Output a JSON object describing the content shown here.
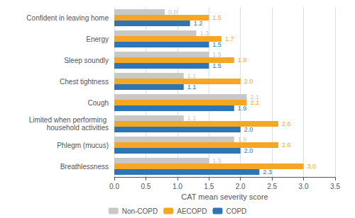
{
  "chart_data": {
    "type": "bar",
    "orientation": "horizontal",
    "categories": [
      "Breathlessness",
      "Phlegm (mucus)",
      "Limited when performing household activities",
      "Cough",
      "Chest tightness",
      "Sleep soundly",
      "Energy",
      "Confident in leaving home"
    ],
    "series": [
      {
        "name": "Non-COPD",
        "color": "#c8c8c8",
        "values": [
          1.5,
          1.9,
          1.1,
          2.1,
          1.1,
          1.5,
          1.3,
          0.8
        ],
        "value_labels": [
          "1.5",
          "1.9",
          "1.1",
          "2.1",
          "1.1",
          "1.5",
          "1.3",
          "0.8"
        ]
      },
      {
        "name": "AECOPD",
        "color": "#f5a623",
        "values": [
          3.0,
          2.6,
          2.6,
          2.1,
          2.0,
          1.9,
          1.7,
          1.5
        ],
        "value_labels": [
          "3.0",
          "2.6",
          "2.6",
          "2.1",
          "2.0",
          "1.9",
          "1.7",
          "1.5"
        ]
      },
      {
        "name": "COPD",
        "color": "#2e75b6",
        "values": [
          2.3,
          2.0,
          2.0,
          1.9,
          1.1,
          1.5,
          1.5,
          1.2
        ],
        "value_labels": [
          "2.3",
          "2.0",
          "2.0",
          "1.9",
          "1.1",
          "1.5",
          "1.5",
          "1.2"
        ]
      }
    ],
    "xlabel": "CAT mean severity score",
    "xlim": [
      0,
      3.5
    ],
    "xticks": [
      {
        "value": 0,
        "label": "0.0"
      },
      0.5,
      {
        "value": 1,
        "label": "1.0"
      },
      1.5,
      {
        "value": 2,
        "label": "2.0"
      },
      2.5,
      {
        "value": 3,
        "label": "3.0"
      },
      3.5
    ],
    "grid": true,
    "legend": "bottom",
    "data_labels": true
  }
}
